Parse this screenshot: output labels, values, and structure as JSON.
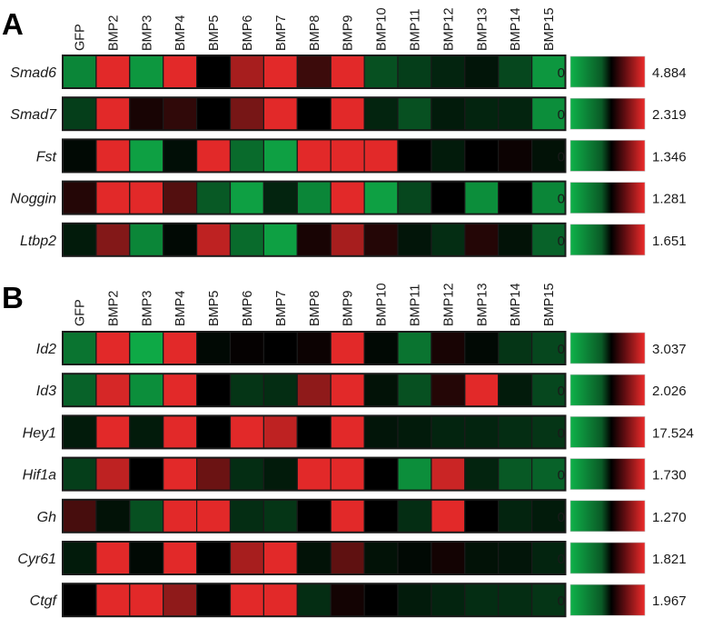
{
  "chart_data": [
    {
      "type": "heatmap",
      "panel_label": "A",
      "columns": [
        "GFP",
        "BMP2",
        "BMP3",
        "BMP4",
        "BMP5",
        "BMP6",
        "BMP7",
        "BMP8",
        "BMP9",
        "BMP10",
        "BMP11",
        "BMP12",
        "BMP13",
        "BMP14",
        "BMP15"
      ],
      "rows": [
        {
          "gene": "Smad6",
          "scale_min": "0",
          "scale_max": "4.884",
          "values": [
            -0.75,
            0.95,
            -0.85,
            0.95,
            0.0,
            0.7,
            0.95,
            0.25,
            0.95,
            -0.45,
            -0.35,
            -0.2,
            -0.12,
            -0.4,
            -0.85
          ]
        },
        {
          "gene": "Smad7",
          "scale_min": "0",
          "scale_max": "2.319",
          "values": [
            -0.35,
            0.95,
            0.1,
            0.2,
            0.0,
            0.5,
            0.95,
            0.0,
            0.95,
            -0.2,
            -0.45,
            -0.15,
            -0.2,
            -0.2,
            -0.8
          ]
        },
        {
          "gene": "Fst",
          "scale_min": "0",
          "scale_max": "1.346",
          "values": [
            -0.05,
            0.95,
            -0.9,
            -0.08,
            0.95,
            -0.6,
            -0.9,
            0.95,
            0.95,
            0.95,
            0.0,
            -0.15,
            0.0,
            0.05,
            -0.1
          ]
        },
        {
          "gene": "Noggin",
          "scale_min": "0",
          "scale_max": "1.281",
          "values": [
            0.15,
            0.95,
            0.95,
            0.35,
            -0.5,
            -0.9,
            -0.2,
            -0.75,
            0.95,
            -0.9,
            -0.4,
            0.0,
            -0.8,
            0.0,
            -0.75
          ]
        },
        {
          "gene": "Ltbp2",
          "scale_min": "0",
          "scale_max": "1.651",
          "values": [
            -0.15,
            0.55,
            -0.75,
            -0.05,
            0.8,
            -0.6,
            -0.9,
            0.1,
            0.7,
            0.15,
            -0.12,
            -0.25,
            0.15,
            -0.1,
            -0.55
          ]
        }
      ]
    },
    {
      "type": "heatmap",
      "panel_label": "B",
      "columns": [
        "GFP",
        "BMP2",
        "BMP3",
        "BMP4",
        "BMP5",
        "BMP6",
        "BMP7",
        "BMP8",
        "BMP9",
        "BMP10",
        "BMP11",
        "BMP12",
        "BMP13",
        "BMP14",
        "BMP15"
      ],
      "rows": [
        {
          "gene": "Id2",
          "scale_min": "0",
          "scale_max": "3.037",
          "values": [
            -0.65,
            0.95,
            -0.95,
            0.95,
            -0.05,
            0.02,
            0.0,
            0.05,
            0.95,
            -0.05,
            -0.65,
            0.1,
            -0.05,
            -0.3,
            -0.4
          ]
        },
        {
          "gene": "Id3",
          "scale_min": "0",
          "scale_max": "2.026",
          "values": [
            -0.55,
            0.9,
            -0.8,
            0.95,
            0.0,
            -0.3,
            -0.25,
            0.6,
            0.95,
            -0.1,
            -0.45,
            0.15,
            0.95,
            -0.15,
            -0.4
          ]
        },
        {
          "gene": "Hey1",
          "scale_min": "0",
          "scale_max": "17.524",
          "values": [
            -0.15,
            0.95,
            -0.15,
            0.95,
            0.0,
            0.95,
            0.8,
            0.0,
            0.95,
            -0.12,
            -0.15,
            -0.2,
            -0.2,
            -0.25,
            -0.3
          ]
        },
        {
          "gene": "Hif1a",
          "scale_min": "0",
          "scale_max": "1.730",
          "values": [
            -0.35,
            0.8,
            0.0,
            0.95,
            0.45,
            -0.25,
            -0.15,
            0.95,
            0.95,
            0.0,
            -0.8,
            0.85,
            -0.2,
            -0.5,
            -0.55
          ]
        },
        {
          "gene": "Gh",
          "scale_min": "0",
          "scale_max": "1.270",
          "values": [
            0.3,
            -0.1,
            -0.45,
            0.95,
            0.95,
            -0.25,
            -0.3,
            0.0,
            0.95,
            0.0,
            -0.25,
            0.95,
            0.0,
            -0.2,
            -0.15
          ]
        },
        {
          "gene": "Cyr61",
          "scale_min": "0",
          "scale_max": "1.821",
          "values": [
            -0.15,
            0.95,
            -0.05,
            0.95,
            0.0,
            0.7,
            0.95,
            -0.1,
            0.4,
            -0.1,
            -0.05,
            0.08,
            -0.1,
            -0.12,
            -0.2
          ]
        },
        {
          "gene": "Ctgf",
          "scale_min": "0",
          "scale_max": "1.967",
          "values": [
            0.0,
            0.95,
            0.95,
            0.6,
            0.0,
            0.95,
            0.95,
            -0.25,
            0.08,
            0.0,
            -0.15,
            -0.2,
            -0.25,
            -0.25,
            -0.3
          ]
        }
      ]
    }
  ],
  "colors": {
    "high": "#ee2b2b",
    "mid": "#000000",
    "low": "#0fb24a",
    "border": "#1a1a1a"
  }
}
